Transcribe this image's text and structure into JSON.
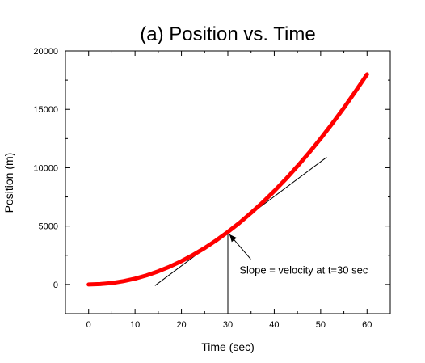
{
  "chart_data": {
    "type": "line",
    "title": "(a) Position vs. Time",
    "xlabel": "Time (sec)",
    "ylabel": "Position (m)",
    "xlim": [
      -5,
      65
    ],
    "ylim": [
      -2500,
      20000
    ],
    "xticks": [
      0,
      10,
      20,
      30,
      40,
      50,
      60
    ],
    "yticks": [
      0,
      5000,
      10000,
      15000,
      20000
    ],
    "grid": false,
    "series": [
      {
        "color": "#ff0000",
        "x": [
          0,
          2.5,
          5,
          7.5,
          10,
          12.5,
          15,
          17.5,
          20,
          22.5,
          25,
          27.5,
          30,
          32.5,
          35,
          37.5,
          40,
          42.5,
          45,
          47.5,
          50,
          52.5,
          55,
          57.5,
          60
        ],
        "y": [
          0,
          31,
          125,
          281,
          500,
          781,
          1125,
          1531,
          2000,
          2531,
          3125,
          3781,
          4500,
          5281,
          6125,
          7031,
          8000,
          9031,
          10125,
          11281,
          12500,
          13781,
          15125,
          16531,
          18000
        ]
      }
    ],
    "tangent_line": {
      "x": [
        14.3,
        51.3
      ],
      "y": [
        -100,
        10900
      ],
      "color": "#000000"
    },
    "vertical_marker": {
      "x": 30,
      "y_from": -2500,
      "y_to": 4500
    },
    "annotation": {
      "text": "Slope = velocity at t=30 sec",
      "point": [
        30,
        4500
      ],
      "text_at": [
        32.5,
        1200
      ]
    }
  }
}
